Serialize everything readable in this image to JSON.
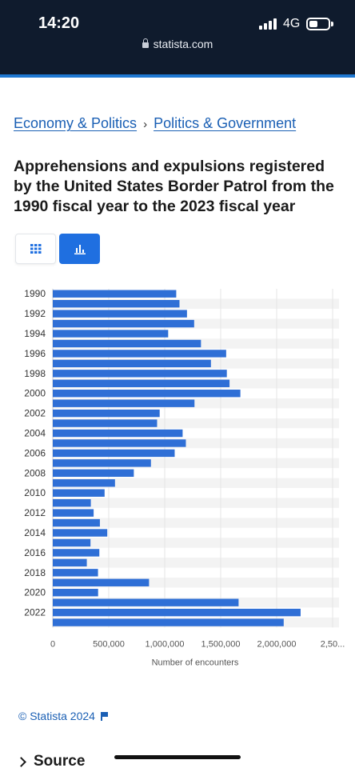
{
  "status_bar": {
    "time": "14:20",
    "network": "4G"
  },
  "browser": {
    "url": "statista.com"
  },
  "breadcrumb": {
    "level1": "Economy & Politics",
    "separator": "›",
    "level2": "Politics & Government"
  },
  "page": {
    "title": "Apprehensions and expulsions registered by the United States Border Patrol from the 1990 fiscal year to the 2023 fiscal year"
  },
  "view_toggle": {
    "table_icon": "table-grid-icon",
    "chart_icon": "bar-chart-icon",
    "selected": "chart"
  },
  "chart_data": {
    "type": "bar",
    "orientation": "horizontal",
    "categories": [
      "1990",
      "1991",
      "1992",
      "1993",
      "1994",
      "1995",
      "1996",
      "1997",
      "1998",
      "1999",
      "2000",
      "2001",
      "2002",
      "2003",
      "2004",
      "2005",
      "2006",
      "2007",
      "2008",
      "2009",
      "2010",
      "2011",
      "2012",
      "2013",
      "2014",
      "2015",
      "2016",
      "2017",
      "2018",
      "2019",
      "2020",
      "2021",
      "2022",
      "2023"
    ],
    "category_tick_labels": [
      "1990",
      "",
      "1992",
      "",
      "1994",
      "",
      "1996",
      "",
      "1998",
      "",
      "2000",
      "",
      "2002",
      "",
      "2004",
      "",
      "2006",
      "",
      "2008",
      "",
      "2010",
      "",
      "2012",
      "",
      "2014",
      "",
      "2016",
      "",
      "2018",
      "",
      "2020",
      "",
      "2022",
      ""
    ],
    "values": [
      1103000,
      1132000,
      1199000,
      1263000,
      1031000,
      1324000,
      1549000,
      1413000,
      1555000,
      1579000,
      1676000,
      1266000,
      955000,
      932000,
      1160000,
      1189000,
      1089000,
      877000,
      724000,
      556000,
      463000,
      340000,
      365000,
      421000,
      487000,
      337000,
      416000,
      304000,
      404000,
      860000,
      405000,
      1660000,
      2214000,
      2063000
    ],
    "xlim": [
      0,
      2500000
    ],
    "x_ticks": [
      "0",
      "500,000",
      "1,000,000",
      "1,500,000",
      "2,000,000",
      "2,50..."
    ],
    "xlabel": "Number of encounters",
    "ylabel": "",
    "grid": true,
    "bar_color": "#2f6fd6",
    "band_color": "#f3f3f3"
  },
  "footer": {
    "copyright": "© Statista 2024",
    "source_label": "Source"
  }
}
